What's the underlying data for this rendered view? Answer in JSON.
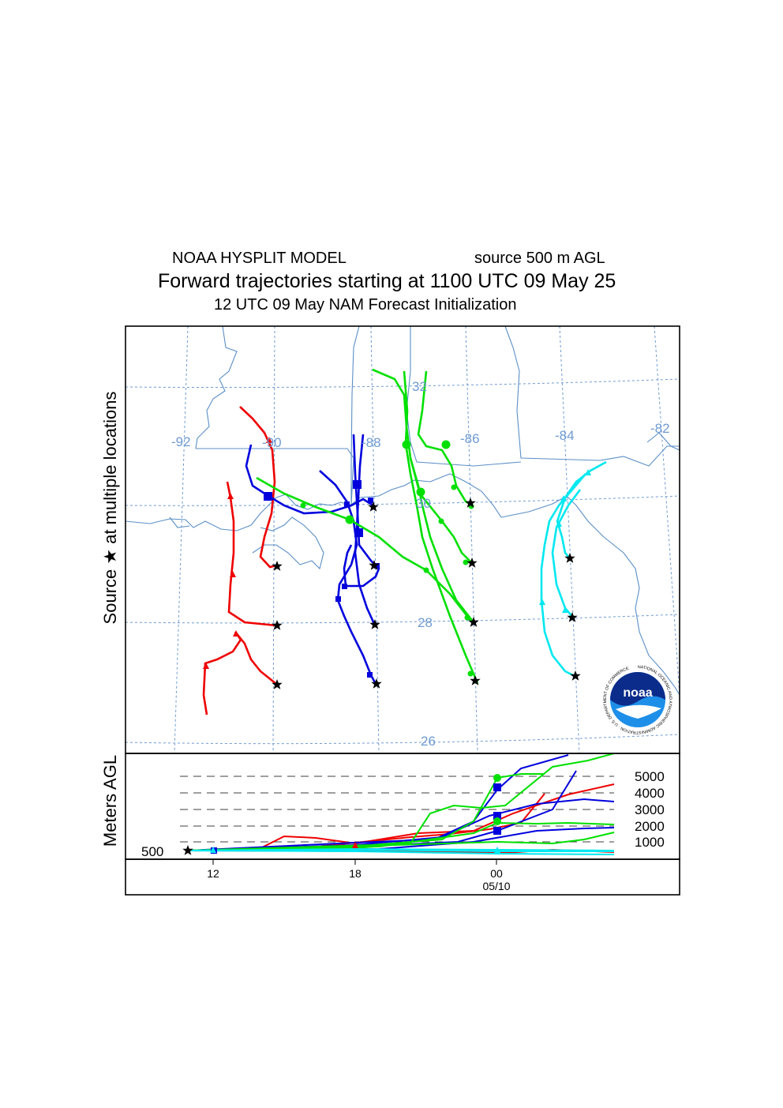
{
  "header": {
    "model": "NOAA HYSPLIT MODEL",
    "source": "source 500 m AGL",
    "title": "Forward trajectories starting at 1100 UTC 09 May 25",
    "subtitle": "12 UTC 09 May    NAM   Forecast Initialization"
  },
  "side_labels": {
    "map": "Source ★  at multiple locations",
    "height": "Meters AGL"
  },
  "map": {
    "lon_labels": [
      "-92",
      "-90",
      "-88",
      "-86",
      "-84",
      "-82"
    ],
    "lat_labels": [
      "32",
      "30",
      "28",
      "26"
    ],
    "colors": {
      "grid": "#6f9bd1",
      "coast": "#5b8fc6",
      "frame": "#000000"
    },
    "trajectory_colors": {
      "red": "#ee0000",
      "blue": "#0000dd",
      "green": "#00e000",
      "cyan": "#00e8f0"
    },
    "logo": {
      "text": "noaa",
      "ring": "NATIONAL OCEANIC AND ATMOSPHERIC ADMINISTRATION · U.S. DEPARTMENT OF COMMERCE"
    }
  },
  "height_panel": {
    "y_ticks": [
      "5000",
      "4000",
      "3000",
      "2000",
      "1000"
    ],
    "source_label": "500",
    "x_ticks": [
      "12",
      "18",
      "00"
    ],
    "date_label": "05/10"
  }
}
